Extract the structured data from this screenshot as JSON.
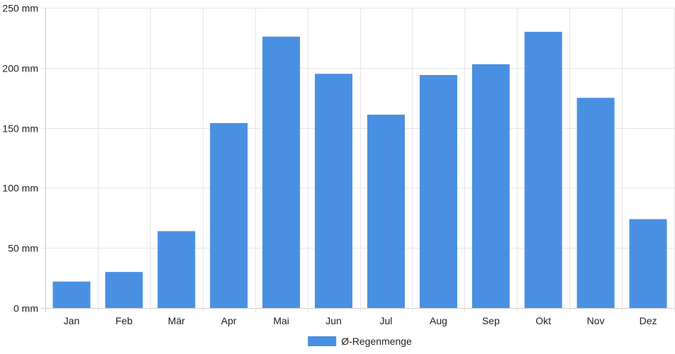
{
  "chart_data": {
    "type": "bar",
    "title": "",
    "xlabel": "",
    "ylabel": "",
    "categories": [
      "Jan",
      "Feb",
      "Mär",
      "Apr",
      "Mai",
      "Jun",
      "Jul",
      "Aug",
      "Sep",
      "Okt",
      "Nov",
      "Dez"
    ],
    "series": [
      {
        "name": "Ø-Regenmenge",
        "color": "#4a90e2",
        "values": [
          22,
          30,
          64,
          154,
          226,
          195,
          161,
          194,
          203,
          230,
          175,
          74
        ]
      }
    ],
    "ylim": [
      0,
      250
    ],
    "yticks": [
      "0 mm",
      "50 mm",
      "100 mm",
      "150 mm",
      "200 mm",
      "250 mm"
    ],
    "grid": true,
    "legend": {
      "position": "bottom",
      "label": "Ø-Regenmenge"
    }
  }
}
